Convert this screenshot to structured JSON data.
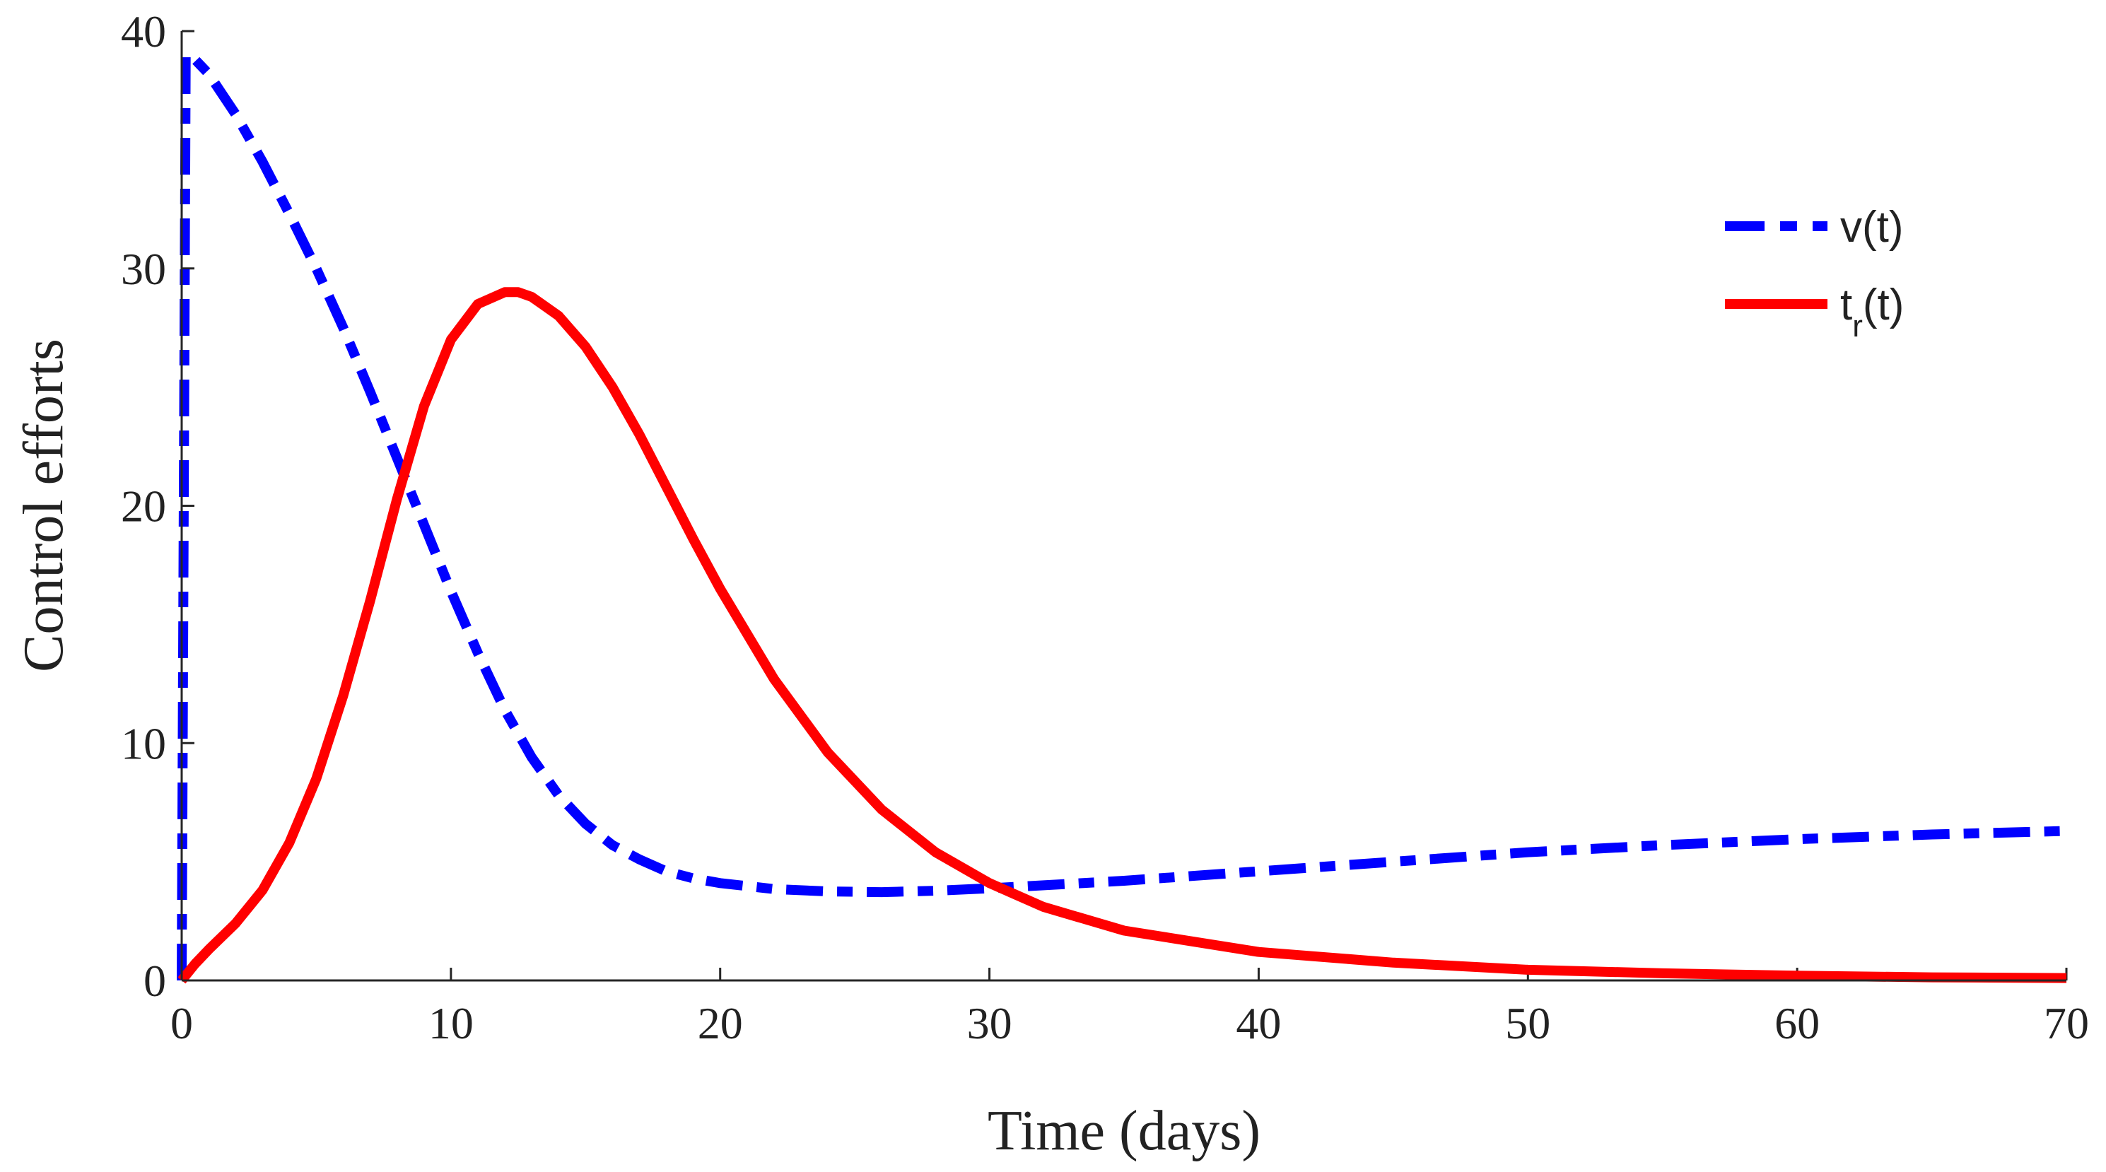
{
  "chart_data": {
    "type": "line",
    "title": "",
    "xlabel": "Time (days)",
    "ylabel": "Control efforts",
    "xlim": [
      0,
      70
    ],
    "ylim": [
      0,
      40
    ],
    "xticks": [
      0,
      10,
      20,
      30,
      40,
      50,
      60,
      70
    ],
    "yticks": [
      0,
      10,
      20,
      30,
      40
    ],
    "grid": false,
    "legend_position": "top-right",
    "series": [
      {
        "name": "v(t)",
        "label_main": "v(t)",
        "color": "#0000ff",
        "style": "dash-dot",
        "points": [
          [
            0,
            0
          ],
          [
            0.15,
            39
          ],
          [
            0.5,
            38.8
          ],
          [
            1,
            38.2
          ],
          [
            2,
            36.5
          ],
          [
            3,
            34.5
          ],
          [
            4,
            32.3
          ],
          [
            5,
            30
          ],
          [
            6,
            27.5
          ],
          [
            7,
            24.8
          ],
          [
            8,
            22
          ],
          [
            9,
            19.2
          ],
          [
            10,
            16.4
          ],
          [
            11,
            13.8
          ],
          [
            12,
            11.4
          ],
          [
            13,
            9.4
          ],
          [
            14,
            7.8
          ],
          [
            15,
            6.6
          ],
          [
            16,
            5.7
          ],
          [
            17,
            5.1
          ],
          [
            18,
            4.6
          ],
          [
            19,
            4.3
          ],
          [
            20,
            4.1
          ],
          [
            22,
            3.85
          ],
          [
            24,
            3.75
          ],
          [
            26,
            3.72
          ],
          [
            28,
            3.78
          ],
          [
            30,
            3.88
          ],
          [
            35,
            4.2
          ],
          [
            40,
            4.6
          ],
          [
            45,
            5.0
          ],
          [
            50,
            5.4
          ],
          [
            55,
            5.7
          ],
          [
            60,
            5.95
          ],
          [
            65,
            6.15
          ],
          [
            70,
            6.3
          ]
        ]
      },
      {
        "name": "t_r(t)",
        "label_main": "t",
        "label_sub": "r",
        "label_tail": "(t)",
        "color": "#ff0000",
        "style": "solid",
        "points": [
          [
            0,
            0
          ],
          [
            0.5,
            0.7
          ],
          [
            1,
            1.3
          ],
          [
            2,
            2.4
          ],
          [
            3,
            3.8
          ],
          [
            4,
            5.8
          ],
          [
            5,
            8.5
          ],
          [
            6,
            12
          ],
          [
            7,
            16
          ],
          [
            8,
            20.3
          ],
          [
            9,
            24.2
          ],
          [
            10,
            27
          ],
          [
            11,
            28.5
          ],
          [
            12,
            29
          ],
          [
            12.5,
            29
          ],
          [
            13,
            28.8
          ],
          [
            14,
            28
          ],
          [
            15,
            26.7
          ],
          [
            16,
            25
          ],
          [
            17,
            23
          ],
          [
            18,
            20.8
          ],
          [
            19,
            18.6
          ],
          [
            20,
            16.5
          ],
          [
            22,
            12.7
          ],
          [
            24,
            9.6
          ],
          [
            26,
            7.2
          ],
          [
            28,
            5.4
          ],
          [
            30,
            4.1
          ],
          [
            32,
            3.1
          ],
          [
            35,
            2.1
          ],
          [
            40,
            1.2
          ],
          [
            45,
            0.75
          ],
          [
            50,
            0.45
          ],
          [
            55,
            0.3
          ],
          [
            60,
            0.2
          ],
          [
            65,
            0.13
          ],
          [
            70,
            0.1
          ]
        ]
      }
    ]
  }
}
